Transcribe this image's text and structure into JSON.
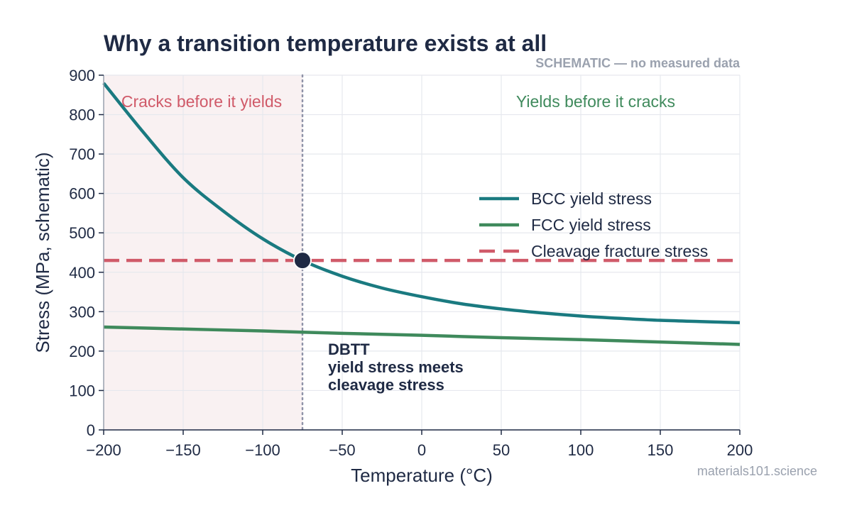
{
  "chart_data": {
    "type": "line",
    "title": "Why a transition temperature exists at all",
    "subtitle": "SCHEMATIC — no measured data",
    "xlabel": "Temperature (°C)",
    "ylabel": "Stress (MPa, schematic)",
    "xlim": [
      -200,
      200
    ],
    "ylim": [
      0,
      900
    ],
    "x_ticks": [
      -200,
      -150,
      -100,
      -50,
      0,
      50,
      100,
      150,
      200
    ],
    "x_tick_labels": [
      "−200",
      "−150",
      "−100",
      "−50",
      "0",
      "50",
      "100",
      "150",
      "200"
    ],
    "y_ticks": [
      0,
      100,
      200,
      300,
      400,
      500,
      600,
      700,
      800,
      900
    ],
    "y_tick_labels": [
      "0",
      "100",
      "200",
      "300",
      "400",
      "500",
      "600",
      "700",
      "800",
      "900"
    ],
    "grid": true,
    "legend_position": "center-right",
    "series": [
      {
        "name": "BCC yield stress",
        "style": "solid",
        "color": "#1a7a80",
        "x": [
          -200,
          -175,
          -150,
          -125,
          -100,
          -75,
          -50,
          -25,
          0,
          25,
          50,
          75,
          100,
          125,
          150,
          175,
          200
        ],
        "y": [
          880,
          755,
          640,
          556,
          485,
          430,
          390,
          360,
          338,
          320,
          307,
          297,
          289,
          283,
          278,
          275,
          272
        ]
      },
      {
        "name": "FCC yield stress",
        "style": "solid",
        "color": "#3f8a5c",
        "x": [
          -200,
          -150,
          -100,
          -50,
          0,
          50,
          100,
          150,
          200
        ],
        "y": [
          261,
          256,
          251,
          245,
          240,
          234,
          229,
          223,
          217
        ]
      },
      {
        "name": "Cleavage fracture stress",
        "style": "dashed",
        "color": "#d05a69",
        "x": [
          -200,
          200
        ],
        "y": [
          430,
          430
        ]
      }
    ],
    "regions": [
      {
        "label": "Cracks before it yields",
        "x_range": [
          -200,
          -75
        ],
        "color": "#d05a69",
        "fill": "#f9f1f2"
      },
      {
        "label": "Yields before it cracks",
        "x_range": [
          -75,
          200
        ],
        "color": "#3f8a5c"
      }
    ],
    "transition": {
      "x": -75,
      "y": 430,
      "annotation": [
        "DBTT",
        "yield stress meets",
        "cleavage stress"
      ],
      "vline_color": "#8f93a8",
      "marker_color": "#1f2a44"
    },
    "footer": "materials101.science"
  }
}
